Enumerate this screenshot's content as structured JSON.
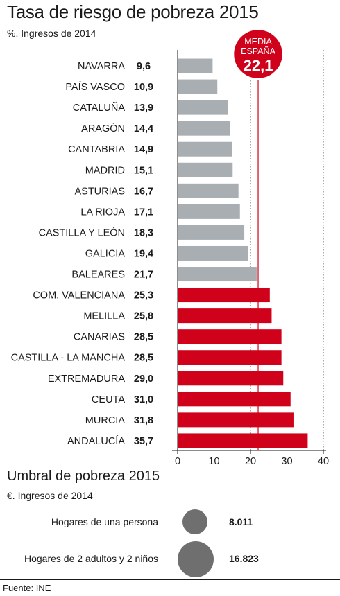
{
  "chart_data": {
    "type": "bar",
    "orientation": "horizontal",
    "title": "Tasa de riesgo de pobreza 2015",
    "subtitle": "%. Ingresos de 2014",
    "categories": [
      "NAVARRA",
      "PAÍS VASCO",
      "CATALUÑA",
      "ARAGÓN",
      "CANTABRIA",
      "MADRID",
      "ASTURIAS",
      "LA RIOJA",
      "CASTILLA Y LEÓN",
      "GALICIA",
      "BALEARES",
      "COM. VALENCIANA",
      "MELILLA",
      "CANARIAS",
      "CASTILLA - LA MANCHA",
      "EXTREMADURA",
      "CEUTA",
      "MURCIA",
      "ANDALUCÍA"
    ],
    "values": [
      9.6,
      10.9,
      13.9,
      14.4,
      14.9,
      15.1,
      16.7,
      17.1,
      18.3,
      19.4,
      21.7,
      25.3,
      25.8,
      28.5,
      28.5,
      29.0,
      31.0,
      31.8,
      35.7
    ],
    "value_labels": [
      "9,6",
      "10,9",
      "13,9",
      "14,4",
      "14,9",
      "15,1",
      "16,7",
      "17,1",
      "18,3",
      "19,4",
      "21,7",
      "25,3",
      "25,8",
      "28,5",
      "28,5",
      "29,0",
      "31,0",
      "31,8",
      "35,7"
    ],
    "xlim": [
      0,
      40
    ],
    "xticks": [
      0,
      10,
      20,
      30,
      40
    ],
    "xtick_labels": [
      "0",
      "10",
      "20",
      "30",
      "40"
    ],
    "grid": "vertical dotted",
    "reference": {
      "value": 22.1,
      "label_line1": "MEDIA",
      "label_line2": "ESPAÑA",
      "value_label": "22,1"
    },
    "colors": {
      "below_average": "#a8aeb2",
      "above_average": "#d0021b",
      "reference": "#d0021b"
    }
  },
  "umbral": {
    "title": "Umbral de pobreza 2015",
    "subtitle": "€. Ingresos de 2014",
    "rows": [
      {
        "label": "Hogares de una persona",
        "value": "8.011",
        "amount": 8011
      },
      {
        "label": "Hogares de 2 adultos y 2 niños",
        "value": "16.823",
        "amount": 16823
      }
    ],
    "circle_color": "#6f6f6f"
  },
  "source": "Fuente: INE"
}
